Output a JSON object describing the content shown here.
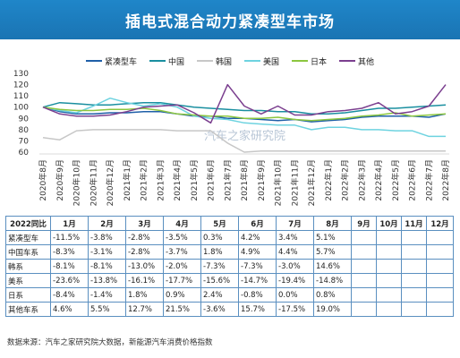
{
  "title": "插电式混合动力紧凑型车市场",
  "chart_data": {
    "type": "line",
    "yticks": [
      60,
      70,
      80,
      90,
      100,
      110,
      120,
      130
    ],
    "ylim": [
      60,
      130
    ],
    "x": [
      "2020年8月",
      "2020年9月",
      "2020年10月",
      "2020年11月",
      "2020年12月",
      "2021年1月",
      "2021年2月",
      "2021年3月",
      "2021年4月",
      "2021年5月",
      "2021年6月",
      "2021年7月",
      "2021年8月",
      "2021年9月",
      "2021年10月",
      "2021年11月",
      "2021年12月",
      "2022年1月",
      "2022年2月",
      "2022年3月",
      "2022年4月",
      "2022年5月",
      "2022年6月",
      "2022年7月",
      "2022年8月"
    ],
    "series": [
      {
        "name": "紧凑型车",
        "color": "#1f5fa8",
        "values": [
          100,
          96,
          94,
          94,
          95,
          95,
          96,
          96,
          94,
          92,
          92,
          90,
          90,
          89,
          88,
          89,
          87,
          88,
          89,
          91,
          92,
          92,
          92,
          91,
          94
        ]
      },
      {
        "name": "中国",
        "color": "#1a8fa0",
        "values": [
          100,
          104,
          103,
          102,
          102,
          103,
          104,
          104,
          102,
          100,
          99,
          98,
          97,
          97,
          96,
          96,
          94,
          94,
          95,
          97,
          99,
          99,
          100,
          101,
          102
        ]
      },
      {
        "name": "韩国",
        "color": "#c7c7c7",
        "values": [
          73,
          71,
          79,
          80,
          80,
          80,
          80,
          80,
          79,
          79,
          79,
          68,
          60,
          61,
          61,
          61,
          61,
          61,
          61,
          61,
          61,
          61,
          61,
          61,
          61
        ]
      },
      {
        "name": "美国",
        "color": "#6ed3e0",
        "values": [
          100,
          97,
          95,
          101,
          108,
          104,
          101,
          103,
          100,
          92,
          90,
          89,
          86,
          85,
          84,
          84,
          80,
          82,
          82,
          80,
          80,
          79,
          79,
          74,
          74
        ]
      },
      {
        "name": "日本",
        "color": "#8cc63f",
        "values": [
          100,
          98,
          97,
          97,
          98,
          98,
          99,
          97,
          94,
          93,
          92,
          92,
          90,
          90,
          91,
          89,
          88,
          89,
          90,
          92,
          93,
          95,
          92,
          93,
          94
        ]
      },
      {
        "name": "其他",
        "color": "#7b3f8f",
        "values": [
          100,
          94,
          92,
          92,
          93,
          96,
          100,
          101,
          102,
          95,
          86,
          120,
          101,
          94,
          101,
          93,
          93,
          96,
          97,
          99,
          104,
          94,
          96,
          101,
          120
        ]
      }
    ]
  },
  "watermark": "汽车之家研究院",
  "table": {
    "header": [
      "2022同比",
      "1月",
      "2月",
      "3月",
      "4月",
      "5月",
      "6月",
      "7月",
      "8月",
      "9月",
      "10月",
      "11月",
      "12月"
    ],
    "rows": [
      {
        "label": "紧凑型车",
        "values": [
          "-11.5%",
          "-3.8%",
          "-2.8%",
          "-3.5%",
          "0.3%",
          "4.2%",
          "3.4%",
          "5.1%",
          "",
          "",
          "",
          ""
        ]
      },
      {
        "label": "中国车系",
        "values": [
          "-8.3%",
          "-3.1%",
          "-2.8%",
          "-3.7%",
          "1.8%",
          "4.9%",
          "4.4%",
          "5.7%",
          "",
          "",
          "",
          ""
        ]
      },
      {
        "label": "韩系",
        "values": [
          "-8.1%",
          "-8.1%",
          "-13.0%",
          "-2.0%",
          "-7.3%",
          "-7.3%",
          "-3.0%",
          "14.6%",
          "",
          "",
          "",
          ""
        ]
      },
      {
        "label": "美系",
        "values": [
          "-23.6%",
          "-13.8%",
          "-16.1%",
          "-17.7%",
          "-15.6%",
          "-14.7%",
          "-19.4%",
          "-14.8%",
          "",
          "",
          "",
          ""
        ]
      },
      {
        "label": "日系",
        "values": [
          "-8.4%",
          "-1.4%",
          "1.8%",
          "0.9%",
          "2.4%",
          "-0.8%",
          "0.0%",
          "0.8%",
          "",
          "",
          "",
          ""
        ]
      },
      {
        "label": "其他车系",
        "values": [
          "4.6%",
          "5.5%",
          "12.7%",
          "21.5%",
          "-3.6%",
          "15.7%",
          "-17.5%",
          "19.0%",
          "",
          "",
          "",
          ""
        ]
      }
    ]
  },
  "footnote": "数据来源：汽车之家研究院大数据，新能源汽车消费价格指数"
}
